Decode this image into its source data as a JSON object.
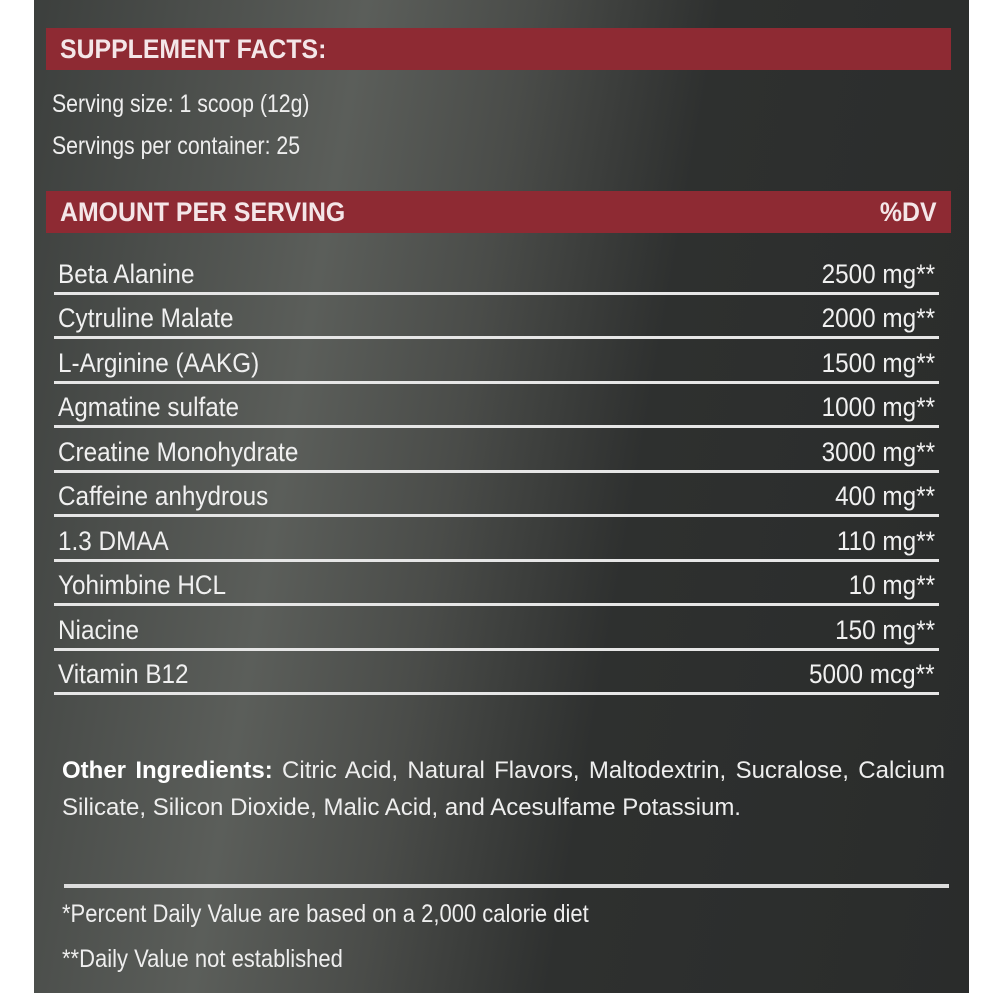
{
  "header": {
    "title": "SUPPLEMENT FACTS:"
  },
  "serving": {
    "size": "Serving size: 1 scoop (12g)",
    "per_container": "Servings per container: 25"
  },
  "table": {
    "header_left": "AMOUNT PER SERVING",
    "header_right": "%DV",
    "rows": [
      {
        "name": "Beta Alanine",
        "amount": "2500 mg**"
      },
      {
        "name": "Cytruline Malate",
        "amount": "2000 mg**"
      },
      {
        "name": "L-Arginine (AAKG)",
        "amount": "1500 mg**"
      },
      {
        "name": "Agmatine sulfate",
        "amount": "1000 mg**"
      },
      {
        "name": "Creatine Monohydrate",
        "amount": "3000 mg**"
      },
      {
        "name": "Caffeine anhydrous",
        "amount": "400 mg**"
      },
      {
        "name": "1.3 DMAA",
        "amount": "110 mg**"
      },
      {
        "name": "Yohimbine HCL",
        "amount": "10 mg**"
      },
      {
        "name": "Niacine",
        "amount": "150 mg**"
      },
      {
        "name": "Vitamin B12",
        "amount": "5000 mcg**"
      }
    ]
  },
  "other": {
    "label": "Other Ingredients:",
    "text": " Citric Acid, Natural Flavors, Maltodextrin, Sucralose, Calcium Silicate, Silicon Dioxide, Malic Acid, and Acesulfame Potassium."
  },
  "footnotes": [
    "*Percent Daily Value are based on a 2,000 calorie diet",
    "**Daily Value not established"
  ],
  "colors": {
    "bar": "#8e2a33",
    "background": "#3a3c3b"
  }
}
